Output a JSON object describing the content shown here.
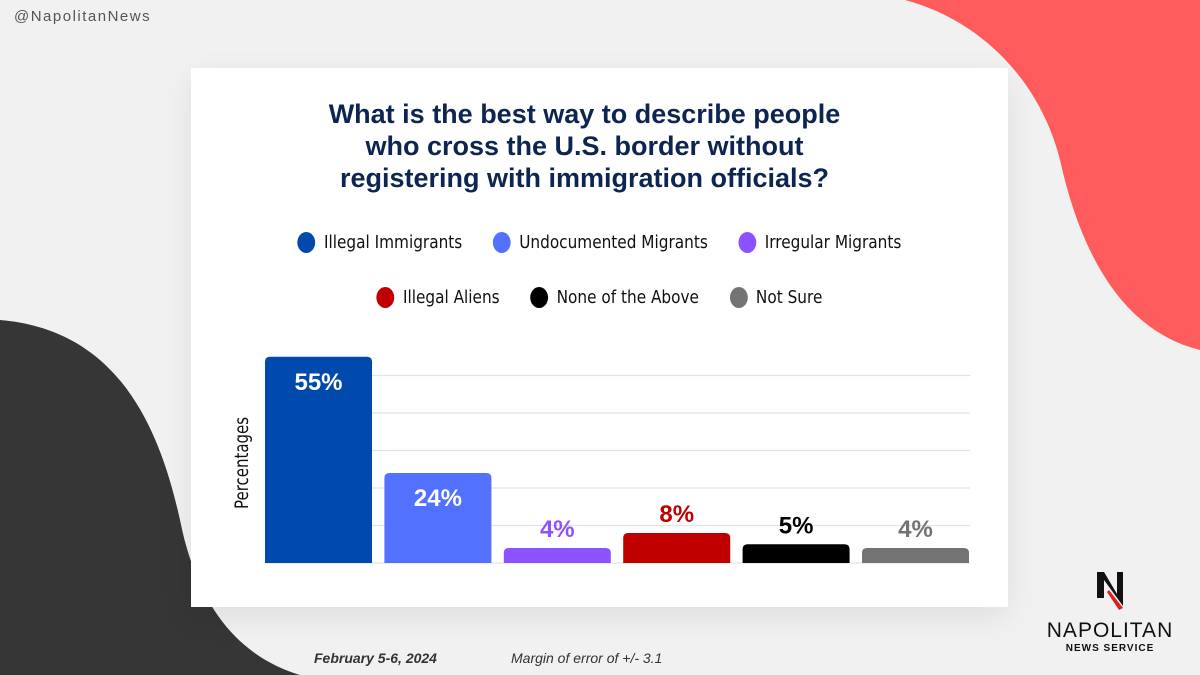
{
  "handle": "@NapolitanNews",
  "footer": {
    "date": "February 5-6, 2024",
    "margin": "Margin of error of +/- 3.1"
  },
  "logo": {
    "name": "NAPOLITAN",
    "sub": "NEWS SERVICE"
  },
  "chart_data": {
    "type": "bar",
    "title": "What is the best way to describe people who cross the U.S. border without registering with immigration officials?",
    "title_lines": [
      "What is the best way to describe people",
      "who cross the U.S. border without",
      "registering with immigration officials?"
    ],
    "ylabel": "Percentages",
    "xlabel": "",
    "ylim": [
      0,
      60
    ],
    "grid": true,
    "legend_position": "top",
    "categories": [
      "Illegal Immigrants",
      "Undocumented Migrants",
      "Irregular Migrants",
      "Illegal Aliens",
      "None of the Above",
      "Not Sure"
    ],
    "values": [
      55,
      24,
      4,
      8,
      5,
      4
    ],
    "labels": [
      "55%",
      "24%",
      "4%",
      "8%",
      "5%",
      "4%"
    ],
    "colors": [
      "#004aad",
      "#5271ff",
      "#8c52ff",
      "#c00000",
      "#000000",
      "#737373"
    ],
    "label_colors": [
      "#ffffff",
      "#ffffff",
      "#8c52ff",
      "#c00000",
      "#000000",
      "#737373"
    ]
  }
}
